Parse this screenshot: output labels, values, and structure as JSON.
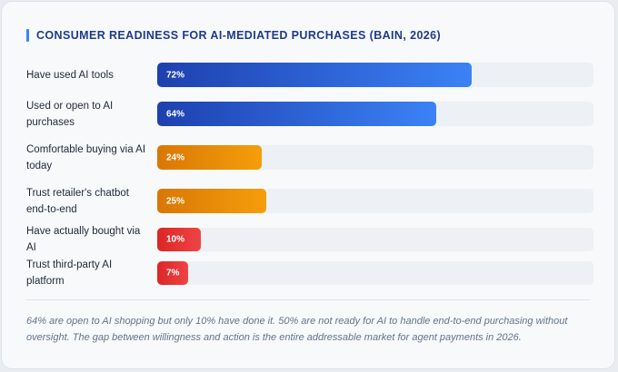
{
  "chart_data": {
    "type": "bar",
    "orientation": "horizontal",
    "title": "CONSUMER READINESS FOR AI-MEDIATED PURCHASES (BAIN, 2026)",
    "categories": [
      "Have used AI tools",
      "Used or open to AI purchases",
      "Comfortable buying via AI today",
      "Trust retailer's chatbot end-to-end",
      "Have actually bought via AI",
      "Trust third-party AI platform"
    ],
    "values": [
      72,
      64,
      24,
      25,
      10,
      7
    ],
    "value_labels": [
      "72%",
      "64%",
      "24%",
      "25%",
      "10%",
      "7%"
    ],
    "bar_colors": [
      "blue",
      "blue",
      "orange",
      "orange",
      "red",
      "red"
    ],
    "xlim": [
      0,
      100
    ],
    "grid": false
  },
  "colors": {
    "blue": [
      "#1e40af",
      "#3b82f6"
    ],
    "orange": [
      "#d97706",
      "#f59e0b"
    ],
    "red": [
      "#dc2626",
      "#ef4444"
    ],
    "accent": "#3b82f6",
    "title": "#1e3a8a"
  },
  "footnote": "64% are open to AI shopping but only 10% have done it. 50% are not ready for AI to handle end-to-end purchasing without oversight. The gap between willingness and action is the entire addressable market for agent payments in 2026."
}
